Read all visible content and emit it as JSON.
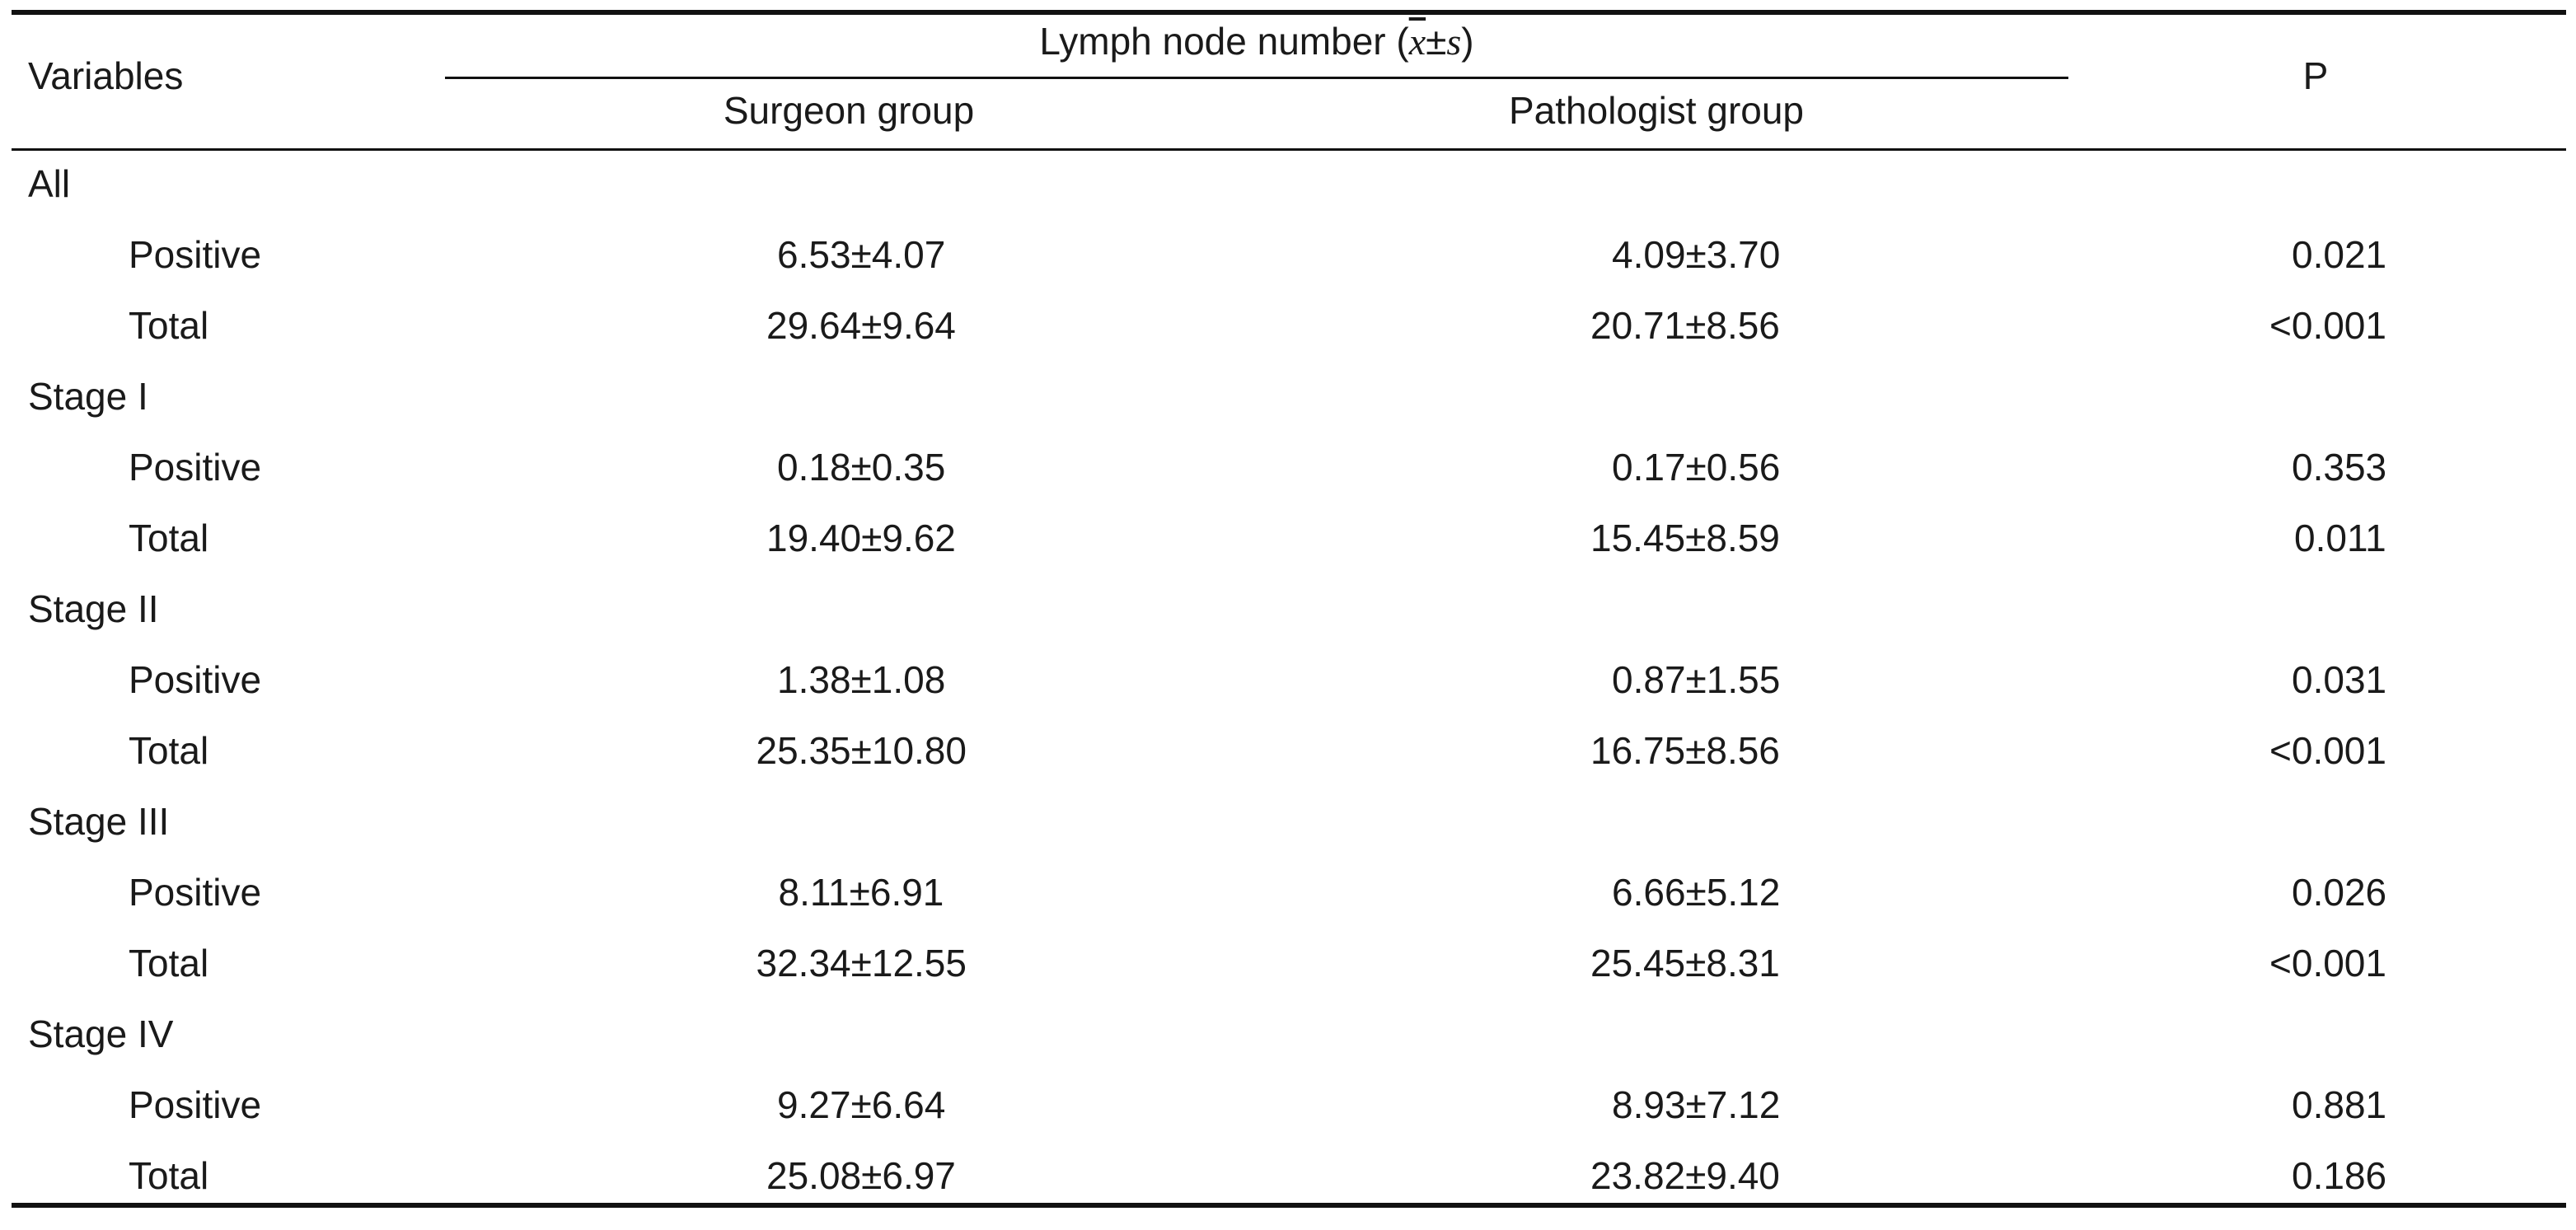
{
  "header": {
    "variables": "Variables",
    "group_title_prefix": "Lymph node number (",
    "group_title_xbar": "x",
    "group_title_pm": "±",
    "group_title_s": "s",
    "group_title_suffix": ")",
    "surgeon": "Surgeon group",
    "pathologist": "Pathologist group",
    "p": "P"
  },
  "rows": [
    {
      "label": "All"
    },
    {
      "label": "Positive",
      "surgeon": "6.53±4.07",
      "pathologist": "4.09±3.70",
      "p": "0.021"
    },
    {
      "label": "Total",
      "surgeon": "29.64±9.64",
      "pathologist": "20.71±8.56",
      "p": "<0.001"
    },
    {
      "label": "Stage I"
    },
    {
      "label": "Positive",
      "surgeon": "0.18±0.35",
      "pathologist": "0.17±0.56",
      "p": "0.353"
    },
    {
      "label": "Total",
      "surgeon": "19.40±9.62",
      "pathologist": "15.45±8.59",
      "p": "0.011"
    },
    {
      "label": "Stage II"
    },
    {
      "label": "Positive",
      "surgeon": "1.38±1.08",
      "pathologist": "0.87±1.55",
      "p": "0.031"
    },
    {
      "label": "Total",
      "surgeon": "25.35±10.80",
      "pathologist": "16.75±8.56",
      "p": "<0.001"
    },
    {
      "label": "Stage III"
    },
    {
      "label": "Positive",
      "surgeon": "8.11±6.91",
      "pathologist": "6.66±5.12",
      "p": "0.026"
    },
    {
      "label": "Total",
      "surgeon": "32.34±12.55",
      "pathologist": "25.45±8.31",
      "p": "<0.001"
    },
    {
      "label": "Stage IV"
    },
    {
      "label": "Positive",
      "surgeon": "9.27±6.64",
      "pathologist": "8.93±7.12",
      "p": "0.881"
    },
    {
      "label": "Total",
      "surgeon": "25.08±6.97",
      "pathologist": "23.82±9.40",
      "p": "0.186"
    }
  ]
}
